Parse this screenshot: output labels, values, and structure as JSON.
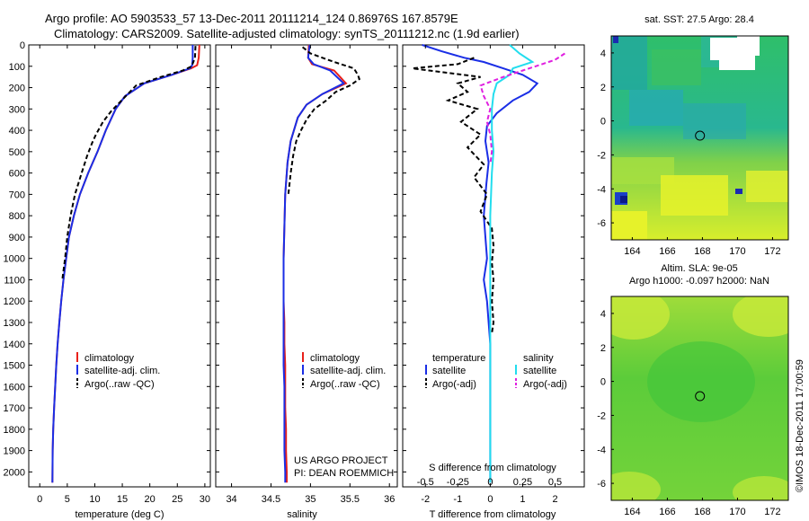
{
  "titles": {
    "line1": "Argo profile: AO 5903533_57 13-Dec-2011 20111214_124 0.86976S 167.8579E",
    "line2": "Climatology: CARS2009. Satellite-adjusted climatology: synTS_20111212.nc (1.9d earlier)"
  },
  "colors": {
    "climatology": "#e8201a",
    "satellite": "#1a2ee6",
    "argo": "#000000",
    "sal_satellite": "#22ddee",
    "sal_argo": "#e020e0"
  },
  "depth_axis": {
    "ylim": [
      0,
      2070
    ],
    "ticks": [
      0,
      100,
      200,
      300,
      400,
      500,
      600,
      700,
      800,
      900,
      1000,
      1100,
      1200,
      1300,
      1400,
      1500,
      1600,
      1700,
      1800,
      1900,
      2000
    ]
  },
  "chart_data": [
    {
      "type": "line",
      "panel": "temperature",
      "xlabel": "temperature (deg C)",
      "xlim": [
        -2,
        31
      ],
      "xticks": [
        0,
        5,
        10,
        15,
        20,
        25,
        30
      ],
      "legend": [
        "climatology",
        "satellite-adj. clim.",
        "Argo(..raw -QC)"
      ],
      "series": [
        {
          "name": "climatology",
          "color_key": "climatology",
          "x": [
            29.0,
            28.9,
            28.6,
            27.5,
            24,
            19,
            15.5,
            13.8,
            12,
            10.5,
            8.8,
            7.3,
            6.2,
            5.3,
            4.8,
            4.3,
            3.9,
            3.55,
            3.25,
            3.0,
            2.8,
            2.6,
            2.45,
            2.35,
            2.3
          ],
          "y": [
            0,
            60,
            95,
            110,
            140,
            180,
            240,
            300,
            400,
            500,
            600,
            700,
            800,
            900,
            1000,
            1100,
            1200,
            1300,
            1400,
            1500,
            1600,
            1700,
            1800,
            1900,
            2050
          ]
        },
        {
          "name": "satellite-adj. clim.",
          "color_key": "satellite",
          "x": [
            27.8,
            27.8,
            27.7,
            27.3,
            24,
            19,
            15.5,
            13.8,
            12,
            10.5,
            8.8,
            7.3,
            6.2,
            5.3,
            4.8,
            4.3,
            3.9,
            3.55,
            3.25,
            3.0,
            2.8,
            2.6,
            2.45,
            2.35,
            2.3
          ],
          "y": [
            0,
            60,
            95,
            110,
            140,
            180,
            240,
            300,
            400,
            500,
            600,
            700,
            800,
            900,
            1000,
            1100,
            1200,
            1300,
            1400,
            1500,
            1600,
            1700,
            1800,
            1900,
            2050
          ]
        },
        {
          "name": "Argo(..raw -QC)",
          "color_key": "argo",
          "x": [
            28.3,
            28.2,
            27.6,
            26,
            22,
            17.5,
            16,
            14.5,
            13,
            11.5,
            10.2,
            9.5,
            8.6,
            7.6,
            6.4,
            5.6,
            5.0,
            4.6,
            4.1
          ],
          "y": [
            5,
            60,
            100,
            120,
            150,
            190,
            230,
            270,
            310,
            360,
            420,
            460,
            520,
            600,
            700,
            800,
            900,
            1000,
            1100
          ]
        }
      ]
    },
    {
      "type": "line",
      "panel": "salinity",
      "xlabel": "salinity",
      "xlim": [
        33.8,
        36.1
      ],
      "xticks": [
        34,
        34.5,
        35,
        35.5,
        36
      ],
      "legend": [
        "climatology",
        "satellite-adj. clim.",
        "Argo(..raw -QC)"
      ],
      "annotation": [
        "US ARGO PROJECT",
        "PI: DEAN ROEMMICH"
      ],
      "series": [
        {
          "name": "climatology",
          "color_key": "climatology",
          "x": [
            34.98,
            34.97,
            35.02,
            35.3,
            35.45,
            35.15,
            34.95,
            34.84,
            34.75,
            34.71,
            34.68,
            34.67,
            34.66,
            34.66,
            34.66,
            34.67,
            34.67,
            34.68,
            34.68,
            34.68,
            34.69,
            34.69,
            34.7,
            34.7
          ],
          "y": [
            0,
            60,
            90,
            120,
            180,
            230,
            280,
            340,
            450,
            550,
            700,
            850,
            1000,
            1100,
            1200,
            1300,
            1400,
            1500,
            1600,
            1700,
            1800,
            1900,
            2000,
            2050
          ]
        },
        {
          "name": "satellite-adj. clim.",
          "color_key": "satellite",
          "x": [
            34.99,
            34.97,
            35.04,
            35.25,
            35.42,
            35.15,
            34.95,
            34.84,
            34.75,
            34.71,
            34.68,
            34.67,
            34.66,
            34.66,
            34.66,
            34.66,
            34.66,
            34.66,
            34.67,
            34.67,
            34.67,
            34.67,
            34.68,
            34.68
          ],
          "y": [
            0,
            60,
            90,
            120,
            180,
            230,
            280,
            340,
            450,
            550,
            700,
            850,
            1000,
            1100,
            1200,
            1300,
            1400,
            1500,
            1600,
            1700,
            1800,
            1900,
            2000,
            2050
          ]
        },
        {
          "name": "Argo(..raw -QC)",
          "color_key": "argo",
          "x": [
            34.9,
            35.0,
            35.3,
            35.55,
            35.6,
            35.62,
            35.5,
            35.32,
            35.2,
            35.05,
            34.95,
            34.88,
            34.82,
            34.78,
            34.75,
            34.72
          ],
          "y": [
            10,
            40,
            80,
            110,
            140,
            160,
            190,
            220,
            260,
            300,
            350,
            400,
            450,
            520,
            600,
            700
          ]
        }
      ]
    },
    {
      "type": "line",
      "panel": "differences",
      "xlabel": "T difference from climatology",
      "xlabel_top": "S difference from climatology",
      "xlim": [
        -2.7,
        2.9
      ],
      "xticks": [
        -2,
        -1,
        0,
        1,
        2
      ],
      "top_ticks": [
        "-0.5",
        "-0.25",
        "0",
        "0.25",
        "0.5"
      ],
      "top_tick_x": [
        -2,
        -1,
        0,
        1,
        2
      ],
      "legend_groups": [
        {
          "heading": "temperature",
          "items": [
            "satellite",
            "Argo(-adj)"
          ]
        },
        {
          "heading": "salinity",
          "items": [
            "satellite",
            "Argo(-adj)"
          ]
        }
      ],
      "series": [
        {
          "name": "T satellite",
          "color_key": "satellite",
          "x": [
            -2.1,
            -1.5,
            -0.8,
            -0.2,
            0.4,
            1.0,
            1.45,
            1.2,
            0.7,
            0.2,
            -0.1,
            -0.15,
            -0.05,
            -0.12,
            -0.2,
            -0.15,
            -0.1,
            -0.2,
            -0.1,
            -0.05,
            0.0,
            0.0,
            0.0,
            0.0
          ],
          "y": [
            0,
            30,
            60,
            80,
            110,
            140,
            180,
            220,
            260,
            320,
            380,
            450,
            550,
            650,
            800,
            900,
            1000,
            1100,
            1200,
            1300,
            1400,
            1600,
            1800,
            2050
          ]
        },
        {
          "name": "T Argo(-adj)",
          "color_key": "argo",
          "x": [
            -0.5,
            -1.0,
            -2.4,
            -0.3,
            -1.0,
            -0.7,
            -1.3,
            -0.4,
            -0.9,
            -0.3,
            -0.7,
            -0.2,
            -0.5,
            -0.1,
            -0.3,
            0.05,
            0.1,
            0.05,
            0.1,
            0.05,
            0.1,
            0.05
          ],
          "y": [
            60,
            90,
            110,
            150,
            180,
            220,
            260,
            300,
            360,
            420,
            480,
            560,
            620,
            700,
            780,
            860,
            940,
            1020,
            1100,
            1200,
            1300,
            1350
          ]
        },
        {
          "name": "S satellite",
          "color_key": "sal_satellite",
          "x": [
            0.6,
            0.9,
            1.3,
            0.7,
            0.6,
            0.2,
            0.1,
            0.05,
            0.05,
            0.1,
            0.05,
            0.0,
            0.0,
            0.0,
            0.0,
            0.0,
            0.0
          ],
          "y": [
            0,
            40,
            80,
            110,
            140,
            180,
            230,
            300,
            400,
            500,
            600,
            800,
            1000,
            1200,
            1400,
            1700,
            2050
          ]
        },
        {
          "name": "S Argo(-adj)",
          "color_key": "sal_argo",
          "x": [
            2.3,
            2.0,
            1.4,
            1.0,
            0.4,
            -0.3,
            -0.2,
            0.0,
            -0.1,
            0.0,
            0.05,
            0.0
          ],
          "y": [
            40,
            70,
            100,
            120,
            150,
            190,
            240,
            300,
            360,
            420,
            500,
            560
          ]
        }
      ]
    },
    {
      "type": "heatmap",
      "panel": "sst_map",
      "title": "sat. SST: 27.5  Argo: 28.4",
      "xticks": [
        164,
        166,
        168,
        170,
        172
      ],
      "yticks": [
        4,
        2,
        0,
        -2,
        -4,
        -6
      ],
      "xlim": [
        162.8,
        172.9
      ],
      "ylim": [
        -7.0,
        5.0
      ],
      "marker": {
        "lon": 167.86,
        "lat": -0.87
      }
    },
    {
      "type": "heatmap",
      "panel": "sla_map",
      "title_line1": "Altim. SLA: 9e-05",
      "title_line2": "Argo h1000: -0.097  h2000: NaN",
      "xticks": [
        164,
        166,
        168,
        170,
        172
      ],
      "yticks": [
        4,
        2,
        0,
        -2,
        -4,
        -6
      ],
      "xlim": [
        162.8,
        172.9
      ],
      "ylim": [
        -7.0,
        5.0
      ],
      "marker": {
        "lon": 167.86,
        "lat": -0.87
      }
    }
  ],
  "footer_stamp": "©IMOS 18-Dec-2011 17:00:59"
}
